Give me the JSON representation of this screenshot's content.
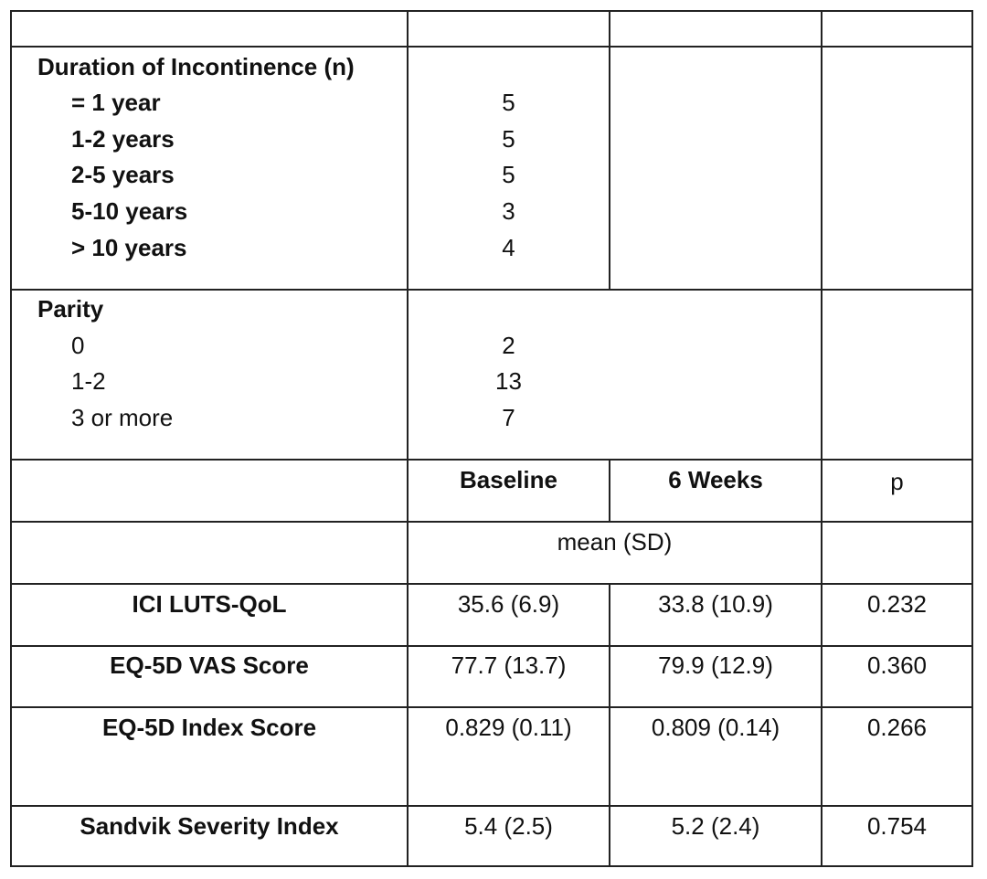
{
  "duration": {
    "header": "Duration of Incontinence (n)",
    "items": [
      {
        "label": "= 1 year",
        "value": "5"
      },
      {
        "label": "1-2 years",
        "value": "5"
      },
      {
        "label": "2-5 years",
        "value": "5"
      },
      {
        "label": "5-10 years",
        "value": "3"
      },
      {
        "label": "> 10 years",
        "value": "4"
      }
    ]
  },
  "parity": {
    "header": "Parity",
    "items": [
      {
        "label": "0",
        "value": "2"
      },
      {
        "label": "1-2",
        "value": "13"
      },
      {
        "label": "3 or more",
        "value": "7"
      }
    ]
  },
  "outcomes": {
    "col_baseline": "Baseline",
    "col_6weeks": "6 Weeks",
    "col_p": "p",
    "subheader": "mean (SD)",
    "rows": [
      {
        "measure": "ICI LUTS-QoL",
        "baseline": "35.6 (6.9)",
        "weeks6": "33.8 (10.9)",
        "p": "0.232"
      },
      {
        "measure": "EQ-5D VAS Score",
        "baseline": "77.7 (13.7)",
        "weeks6": "79.9 (12.9)",
        "p": "0.360"
      },
      {
        "measure": "EQ-5D Index Score",
        "baseline": "0.829 (0.11)",
        "weeks6": "0.809 (0.14)",
        "p": "0.266"
      },
      {
        "measure": "Sandvik Severity Index",
        "baseline": "5.4 (2.5)",
        "weeks6": "5.2 (2.4)",
        "p": "0.754"
      }
    ]
  }
}
